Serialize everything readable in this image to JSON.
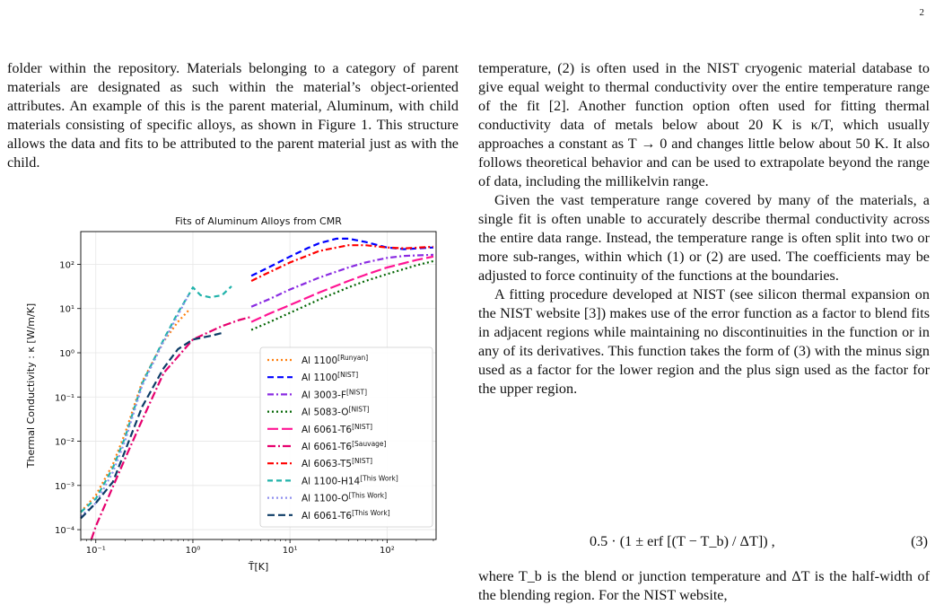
{
  "page_number": "2",
  "left_paragraph": "folder within the repository. Materials belonging to a category of parent materials are designated as such within the material’s object-oriented attributes. An example of this is the parent material, Aluminum, with child materials consisting of specific alloys, as shown in Figure 1. This structure allows the data and fits to be attributed to the parent material just as with the child.",
  "right_paragraphs": [
    "temperature, (2) is often used in the NIST cryogenic material database to give equal weight to thermal conductivity over the entire temperature range of the fit [2]. Another function option often used for fitting thermal conductivity data of metals below about 20 K is κ/T, which usually approaches a constant as T → 0 and changes little below about 50 K. It also follows theoretical behavior and can be used to extrapolate beyond the range of data, including the millikelvin range.",
    "Given the vast temperature range covered by many of the materials, a single fit is often unable to accurately describe thermal conductivity across the entire data range. Instead, the temperature range is often split into two or more sub-ranges, within which (1) or (2) are used. The coefficients may be adjusted to force continuity of the functions at the boundaries.",
    "A fitting procedure developed at NIST (see silicon thermal expansion on the NIST website [3]) makes use of the error function as a factor to blend fits in adjacent regions while maintaining no discontinuities in the function or in any of its derivatives. This function takes the form of (3) with the minus sign used as a factor for the lower region and the plus sign used as the factor for the upper region."
  ],
  "equation": {
    "text": "0.5 · (1 ± erf [(T − T_b) / ΔT]) ,",
    "number": "(3)"
  },
  "after_equation": "where T_b is the blend or junction temperature and ΔT is the half-width of the blending region. For the NIST website,",
  "chart_data": {
    "type": "line",
    "title": "Fits of Aluminum Alloys from CMR",
    "xlabel": "T̃[K]",
    "ylabel": "Thermal Conductivity : κ [W/m/K]",
    "xscale": "log",
    "yscale": "log",
    "xlim": [
      0.07,
      320
    ],
    "ylim": [
      6e-05,
      550
    ],
    "x_ticks": [
      "10⁻¹",
      "10⁰",
      "10¹",
      "10²"
    ],
    "y_ticks": [
      "10⁻⁴",
      "10⁻³",
      "10⁻²",
      "10⁻¹",
      "10⁰",
      "10¹",
      "10²"
    ],
    "grid": true,
    "legend_position": "lower-right",
    "series": [
      {
        "name": "Al 1100",
        "sup": "[Runyan]",
        "color": "#ff7f0e",
        "dash": "2,3",
        "x": [
          0.07,
          0.1,
          0.15,
          0.2,
          0.3,
          0.5,
          0.7,
          0.9
        ],
        "y": [
          0.00025,
          0.0006,
          0.003,
          0.015,
          0.22,
          1.8,
          5.0,
          9.0
        ]
      },
      {
        "name": "Al 1100",
        "sup": "[NIST]",
        "color": "#0000ff",
        "dash": "7,4",
        "x": [
          4,
          6,
          10,
          15,
          20,
          30,
          40,
          60,
          100,
          150,
          300
        ],
        "y": [
          55,
          85,
          150,
          230,
          300,
          380,
          380,
          320,
          240,
          220,
          240
        ]
      },
      {
        "name": "Al 3003-F",
        "sup": "[NIST]",
        "color": "#8a2be2",
        "dash": "7,3,2,3",
        "x": [
          4,
          6,
          10,
          20,
          40,
          60,
          100,
          150,
          300
        ],
        "y": [
          11,
          16,
          27,
          50,
          85,
          110,
          140,
          155,
          165
        ]
      },
      {
        "name": "Al 5083-O",
        "sup": "[NIST]",
        "color": "#006400",
        "dash": "2,3",
        "x": [
          4,
          6,
          10,
          20,
          40,
          60,
          100,
          200,
          300
        ],
        "y": [
          3.3,
          4.8,
          8.0,
          16,
          30,
          42,
          60,
          95,
          118
        ]
      },
      {
        "name": "Al 6061-T6",
        "sup": "[NIST]",
        "color": "#ff1493",
        "dash": "12,4",
        "x": [
          4,
          6,
          10,
          20,
          40,
          60,
          100,
          200,
          300
        ],
        "y": [
          5.0,
          7.5,
          12,
          23,
          42,
          58,
          85,
          125,
          150
        ]
      },
      {
        "name": "Al 6061-T6",
        "sup": "[Sauvage]",
        "color": "#e6006e",
        "dash": "9,3,2,3",
        "x": [
          0.09,
          0.1,
          0.2,
          0.3,
          0.5,
          1.0,
          2.0,
          3.0,
          4.0
        ],
        "y": [
          6e-05,
          0.00012,
          0.004,
          0.03,
          0.35,
          2.0,
          4.0,
          5.5,
          6.5
        ]
      },
      {
        "name": "Al 6063-T5",
        "sup": "[NIST]",
        "color": "#ff0000",
        "dash": "7,3,2,3",
        "x": [
          4,
          6,
          10,
          20,
          40,
          60,
          100,
          150,
          300
        ],
        "y": [
          42,
          65,
          110,
          200,
          270,
          270,
          240,
          230,
          250
        ]
      },
      {
        "name": "Al 1100-H14",
        "sup": "[This Work]",
        "color": "#20b2aa",
        "dash": "6,4",
        "x": [
          0.07,
          0.1,
          0.15,
          0.2,
          0.3,
          0.5,
          0.7,
          0.9,
          1.0,
          1.2,
          1.5,
          2.0,
          2.5
        ],
        "y": [
          0.00025,
          0.0005,
          0.0025,
          0.012,
          0.2,
          2.0,
          8.0,
          20,
          30,
          20,
          18,
          20,
          32
        ]
      },
      {
        "name": "Al 1100-O",
        "sup": "[This Work]",
        "color": "#8f8fef",
        "dash": "2,3",
        "x": [
          0.07,
          0.1,
          0.15,
          0.2,
          0.3,
          0.5,
          0.7,
          0.9
        ],
        "y": [
          0.0002,
          0.0004,
          0.002,
          0.01,
          0.18,
          1.8,
          7.0,
          20
        ]
      },
      {
        "name": "Al 6061-T6",
        "sup": "[This Work]",
        "color": "#0d3b66",
        "dash": "8,4",
        "x": [
          0.07,
          0.1,
          0.15,
          0.2,
          0.3,
          0.5,
          0.7,
          1.0,
          1.5,
          2.0
        ],
        "y": [
          0.00018,
          0.0004,
          0.0012,
          0.006,
          0.06,
          0.45,
          1.2,
          2.0,
          2.4,
          2.8
        ]
      }
    ]
  }
}
